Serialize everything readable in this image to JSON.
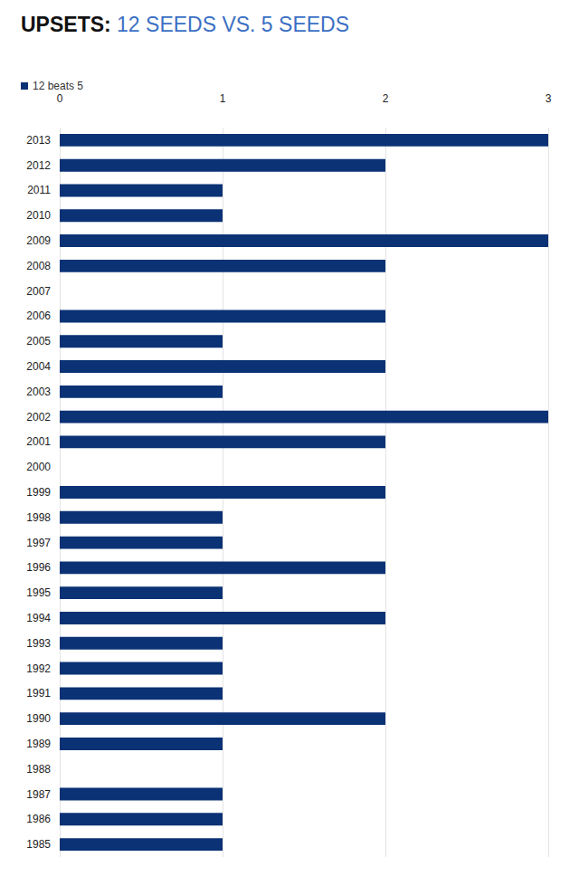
{
  "chart_data": {
    "type": "bar",
    "title": "UPSETS: 12 SEEDS VS. 5 SEEDS",
    "orientation": "horizontal",
    "categories": [
      "2013",
      "2012",
      "2011",
      "2010",
      "2009",
      "2008",
      "2007",
      "2006",
      "2005",
      "2004",
      "2003",
      "2002",
      "2001",
      "2000",
      "1999",
      "1998",
      "1997",
      "1996",
      "1995",
      "1994",
      "1993",
      "1992",
      "1991",
      "1990",
      "1989",
      "1988",
      "1987",
      "1986",
      "1985"
    ],
    "series": [
      {
        "name": "12 beats 5",
        "color": "#0b3275",
        "values": [
          3,
          2,
          1,
          1,
          3,
          2,
          0,
          2,
          1,
          2,
          1,
          3,
          2,
          0,
          2,
          1,
          1,
          2,
          1,
          2,
          1,
          1,
          1,
          2,
          1,
          0,
          1,
          1,
          1
        ]
      }
    ],
    "xlim": [
      0,
      3
    ],
    "xticks": [
      0,
      1,
      2,
      3
    ],
    "grid": true,
    "legend": "top-left"
  }
}
